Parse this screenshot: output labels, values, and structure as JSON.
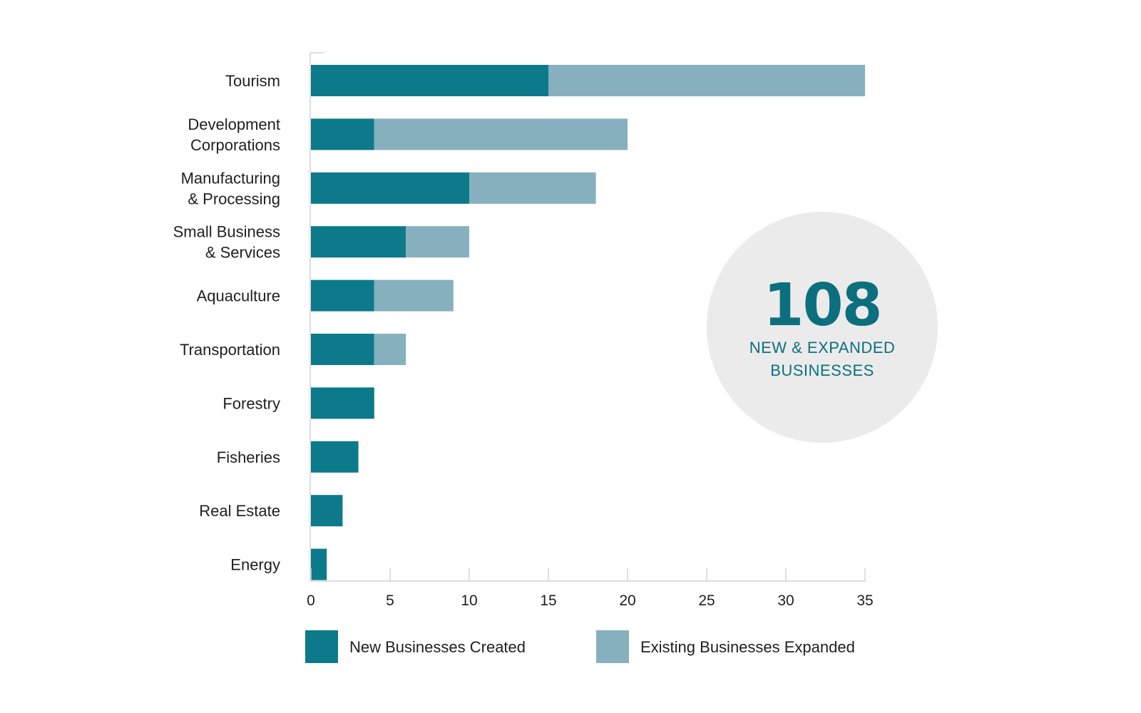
{
  "colors": {
    "new": "#0c7a8a",
    "expanded": "#87b0bf",
    "axis": "#d4d4d4",
    "callout_bg": "#ebebeb",
    "callout_text": "#0c6f7e"
  },
  "callout": {
    "number": "108",
    "line1": "NEW & EXPANDED",
    "line2": "BUSINESSES"
  },
  "chart_data": {
    "type": "bar",
    "orientation": "horizontal",
    "stacked": true,
    "categories": [
      [
        "Tourism"
      ],
      [
        "Development",
        "Corporations"
      ],
      [
        "Manufacturing",
        "& Processing"
      ],
      [
        "Small Business",
        "& Services"
      ],
      [
        "Aquaculture"
      ],
      [
        "Transportation"
      ],
      [
        "Forestry"
      ],
      [
        "Fisheries"
      ],
      [
        "Real Estate"
      ],
      [
        "Energy"
      ]
    ],
    "series": [
      {
        "name": "New Businesses Created",
        "values": [
          15,
          4,
          10,
          6,
          4,
          4,
          4,
          3,
          2,
          1
        ]
      },
      {
        "name": "Existing Businesses Expanded",
        "values": [
          20,
          16,
          8,
          4,
          5,
          2,
          0,
          0,
          0,
          0
        ]
      }
    ],
    "xlim": [
      0,
      35
    ],
    "xticks": [
      0,
      5,
      10,
      15,
      20,
      25,
      30,
      35
    ],
    "title": "",
    "xlabel": "",
    "ylabel": "",
    "grid": false,
    "legend_position": "bottom"
  }
}
